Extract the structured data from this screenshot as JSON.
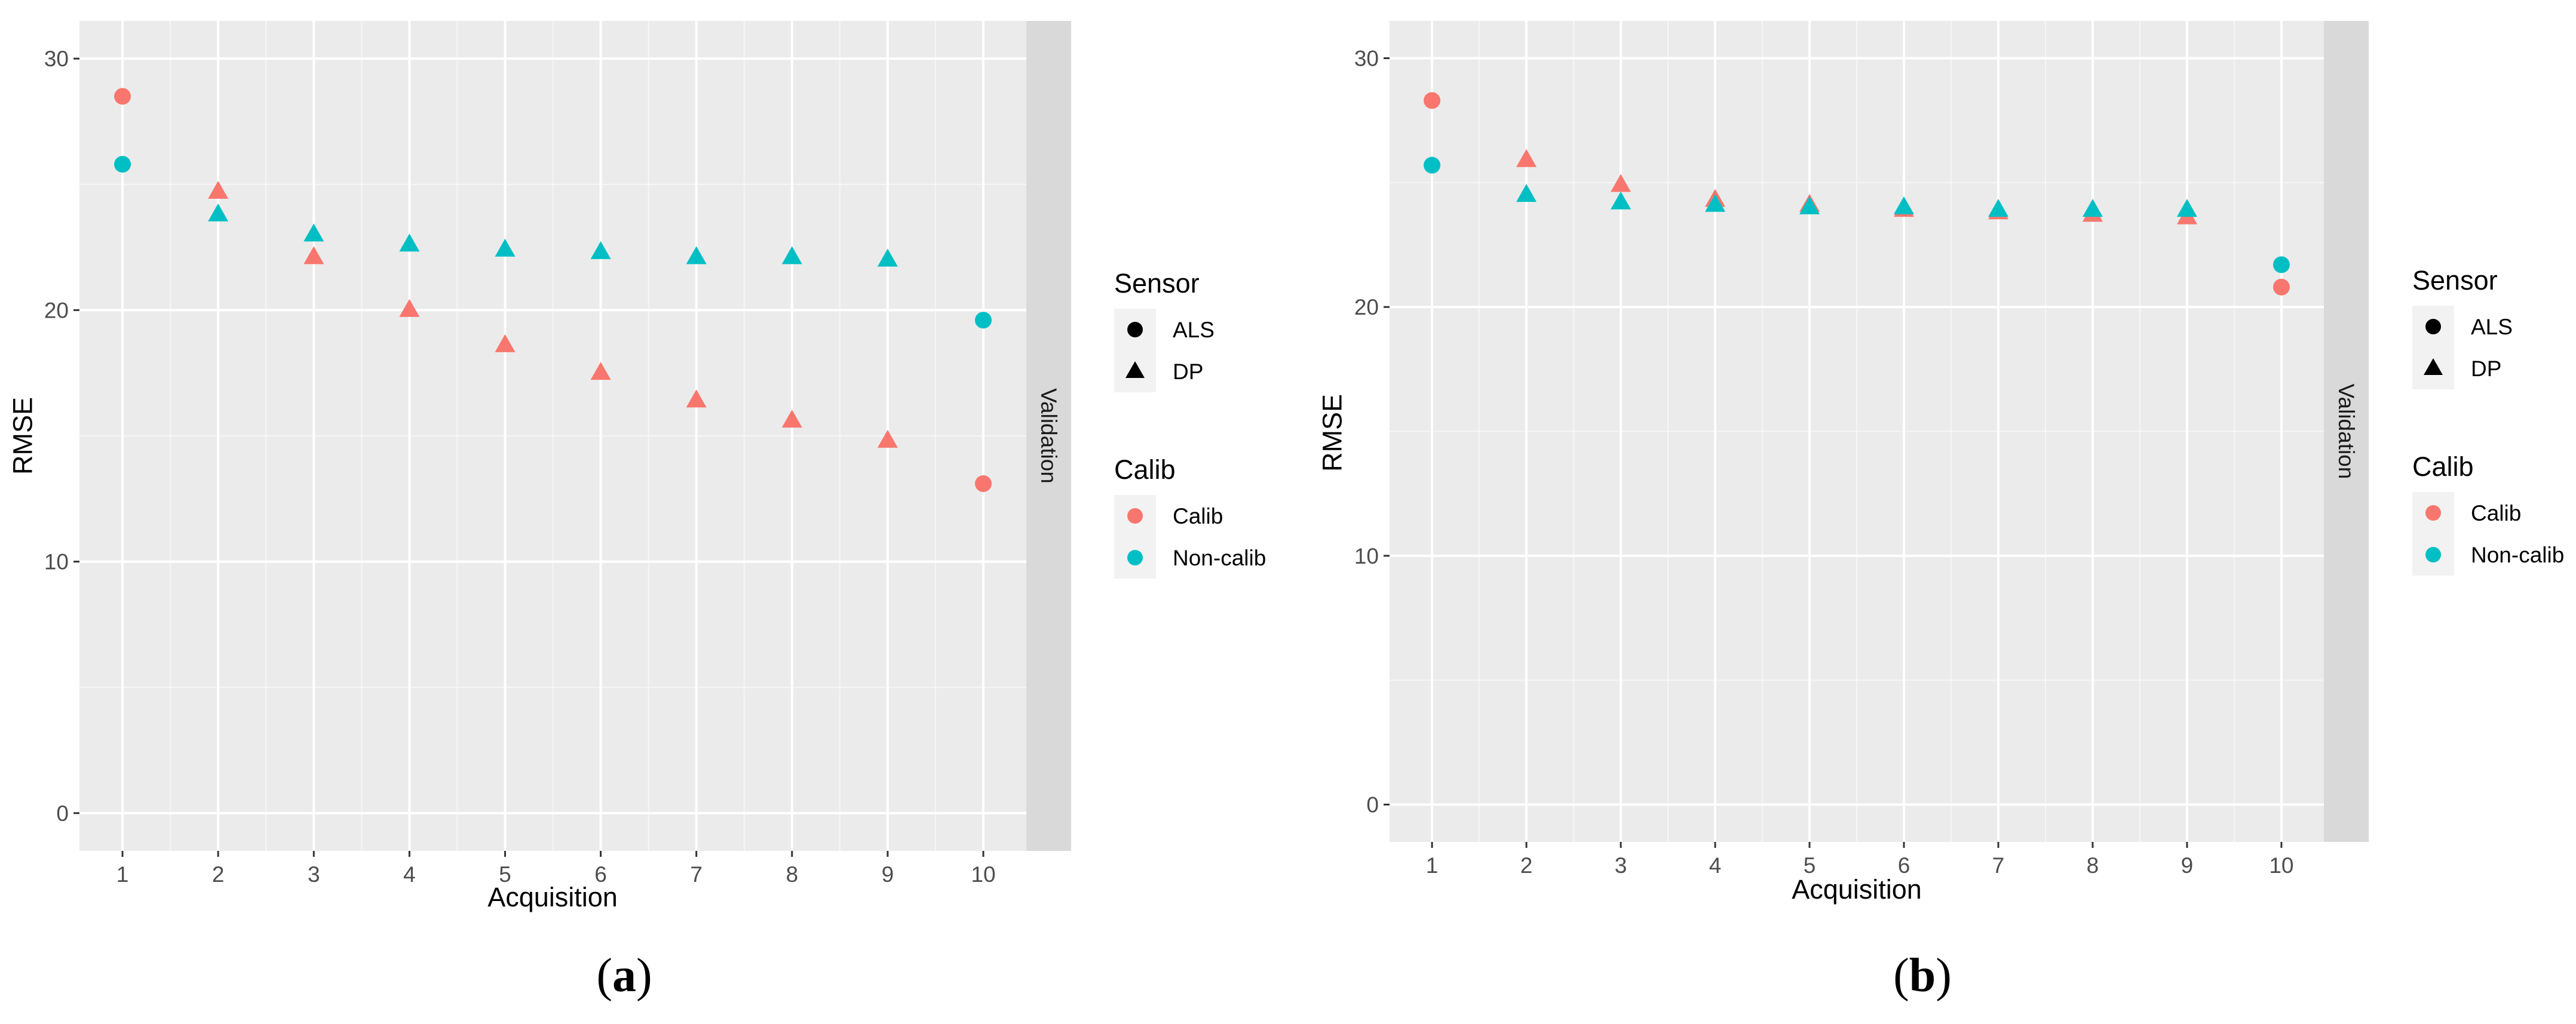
{
  "colors": {
    "calib": "#F8766D",
    "non_calib": "#00BFC4",
    "panel_bg": "#EBEBEB",
    "grid": "#FFFFFF",
    "strip_bg": "#D9D9D9",
    "legend_key_bg": "#F2F2F2"
  },
  "chart_data": [
    {
      "type": "scatter",
      "caption": {
        "open": "(",
        "letter": "a",
        "close": ")"
      },
      "xlabel": "Acquisition",
      "ylabel": "RMSE",
      "facet_label": "Validation",
      "x_categories": [
        "1",
        "2",
        "3",
        "4",
        "5",
        "6",
        "7",
        "8",
        "9",
        "10"
      ],
      "ylim": [
        -1.5,
        31.5
      ],
      "yticks": [
        0,
        10,
        20,
        30
      ],
      "legend": {
        "sensor_title": "Sensor",
        "sensor_items": [
          {
            "label": "ALS",
            "shape": "circle"
          },
          {
            "label": "DP",
            "shape": "triangle"
          }
        ],
        "calib_title": "Calib",
        "calib_items": [
          {
            "label": "Calib",
            "color_key": "calib"
          },
          {
            "label": "Non-calib",
            "color_key": "non_calib"
          }
        ]
      },
      "series": [
        {
          "name": "Calib",
          "color_key": "calib",
          "points": [
            {
              "x": "1",
              "y": 28.5,
              "sensor": "ALS"
            },
            {
              "x": "2",
              "y": 24.7,
              "sensor": "DP"
            },
            {
              "x": "3",
              "y": 22.1,
              "sensor": "DP"
            },
            {
              "x": "4",
              "y": 20.0,
              "sensor": "DP"
            },
            {
              "x": "5",
              "y": 18.6,
              "sensor": "DP"
            },
            {
              "x": "6",
              "y": 17.5,
              "sensor": "DP"
            },
            {
              "x": "7",
              "y": 16.4,
              "sensor": "DP"
            },
            {
              "x": "8",
              "y": 15.6,
              "sensor": "DP"
            },
            {
              "x": "9",
              "y": 14.8,
              "sensor": "DP"
            },
            {
              "x": "10",
              "y": 13.1,
              "sensor": "ALS"
            }
          ]
        },
        {
          "name": "Non-calib",
          "color_key": "non_calib",
          "points": [
            {
              "x": "1",
              "y": 25.8,
              "sensor": "ALS"
            },
            {
              "x": "2",
              "y": 23.8,
              "sensor": "DP"
            },
            {
              "x": "3",
              "y": 23.0,
              "sensor": "DP"
            },
            {
              "x": "4",
              "y": 22.6,
              "sensor": "DP"
            },
            {
              "x": "5",
              "y": 22.4,
              "sensor": "DP"
            },
            {
              "x": "6",
              "y": 22.3,
              "sensor": "DP"
            },
            {
              "x": "7",
              "y": 22.1,
              "sensor": "DP"
            },
            {
              "x": "8",
              "y": 22.1,
              "sensor": "DP"
            },
            {
              "x": "9",
              "y": 22.0,
              "sensor": "DP"
            },
            {
              "x": "10",
              "y": 19.6,
              "sensor": "ALS"
            }
          ]
        }
      ]
    },
    {
      "type": "scatter",
      "caption": {
        "open": "(",
        "letter": "b",
        "close": ")"
      },
      "xlabel": "Acquisition",
      "ylabel": "RMSE",
      "facet_label": "Validation",
      "x_categories": [
        "1",
        "2",
        "3",
        "4",
        "5",
        "6",
        "7",
        "8",
        "9",
        "10"
      ],
      "ylim": [
        -1.5,
        31.5
      ],
      "yticks": [
        0,
        10,
        20,
        30
      ],
      "legend": {
        "sensor_title": "Sensor",
        "sensor_items": [
          {
            "label": "ALS",
            "shape": "circle"
          },
          {
            "label": "DP",
            "shape": "triangle"
          }
        ],
        "calib_title": "Calib",
        "calib_items": [
          {
            "label": "Calib",
            "color_key": "calib"
          },
          {
            "label": "Non-calib",
            "color_key": "non_calib"
          }
        ]
      },
      "series": [
        {
          "name": "Calib",
          "color_key": "calib",
          "points": [
            {
              "x": "1",
              "y": 28.3,
              "sensor": "ALS"
            },
            {
              "x": "2",
              "y": 25.9,
              "sensor": "DP"
            },
            {
              "x": "3",
              "y": 24.9,
              "sensor": "DP"
            },
            {
              "x": "4",
              "y": 24.3,
              "sensor": "DP"
            },
            {
              "x": "5",
              "y": 24.1,
              "sensor": "DP"
            },
            {
              "x": "6",
              "y": 23.9,
              "sensor": "DP"
            },
            {
              "x": "7",
              "y": 23.8,
              "sensor": "DP"
            },
            {
              "x": "8",
              "y": 23.7,
              "sensor": "DP"
            },
            {
              "x": "9",
              "y": 23.6,
              "sensor": "DP"
            },
            {
              "x": "10",
              "y": 20.8,
              "sensor": "ALS"
            }
          ]
        },
        {
          "name": "Non-calib",
          "color_key": "non_calib",
          "points": [
            {
              "x": "1",
              "y": 25.7,
              "sensor": "ALS"
            },
            {
              "x": "2",
              "y": 24.5,
              "sensor": "DP"
            },
            {
              "x": "3",
              "y": 24.2,
              "sensor": "DP"
            },
            {
              "x": "4",
              "y": 24.1,
              "sensor": "DP"
            },
            {
              "x": "5",
              "y": 24.0,
              "sensor": "DP"
            },
            {
              "x": "6",
              "y": 24.0,
              "sensor": "DP"
            },
            {
              "x": "7",
              "y": 23.9,
              "sensor": "DP"
            },
            {
              "x": "8",
              "y": 23.9,
              "sensor": "DP"
            },
            {
              "x": "9",
              "y": 23.9,
              "sensor": "DP"
            },
            {
              "x": "10",
              "y": 21.7,
              "sensor": "ALS"
            }
          ]
        }
      ]
    }
  ]
}
